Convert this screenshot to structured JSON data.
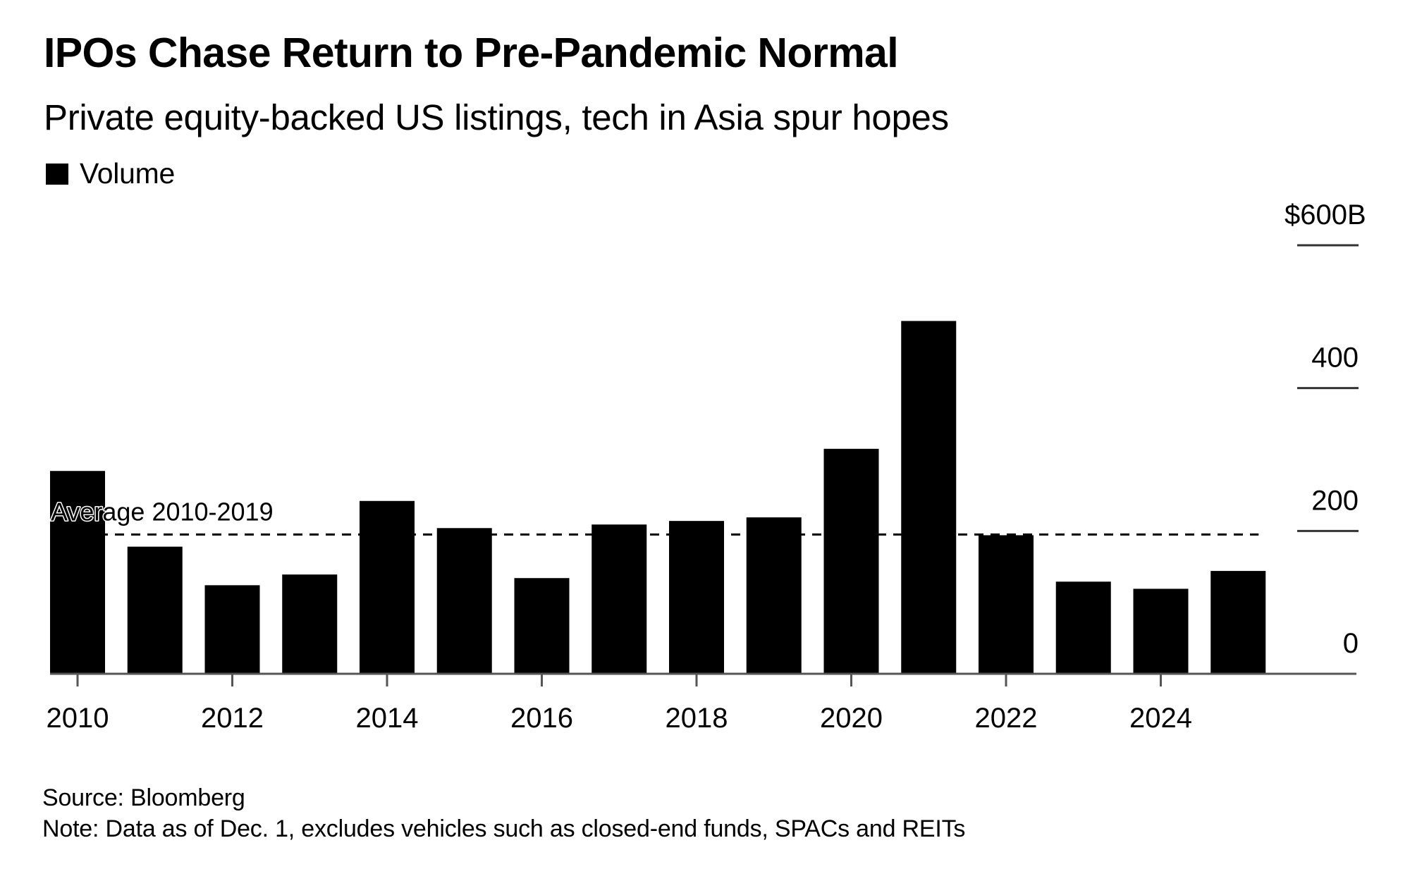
{
  "header": {
    "title": "IPOs Chase Return to Pre-Pandemic Normal",
    "subtitle": "Private equity-backed US listings, tech in Asia spur hopes"
  },
  "legend": {
    "items": [
      {
        "label": "Volume",
        "color": "#000000"
      }
    ]
  },
  "footer": {
    "source": "Source: Bloomberg",
    "note": "Note: Data as of Dec. 1, excludes vehicles such as closed-end funds, SPACs and REITs"
  },
  "chart_data": {
    "type": "bar",
    "title": "IPOs Chase Return to Pre-Pandemic Normal",
    "subtitle": "Private equity-backed US listings, tech in Asia spur hopes",
    "xlabel": "",
    "ylabel": "",
    "categories": [
      "2010",
      "2011",
      "2012",
      "2013",
      "2014",
      "2015",
      "2016",
      "2017",
      "2018",
      "2019",
      "2020",
      "2021",
      "2022",
      "2023",
      "2024",
      "2025"
    ],
    "series": [
      {
        "name": "Volume",
        "color": "#000000",
        "values": [
          284,
          178,
          124,
          139,
          242,
          204,
          134,
          209,
          214,
          219,
          315,
          494,
          194,
          129,
          119,
          144
        ]
      }
    ],
    "units": "$B",
    "ylim": [
      0,
      600
    ],
    "y_ticks": [
      {
        "value": 0,
        "label": "0"
      },
      {
        "value": 200,
        "label": "200"
      },
      {
        "value": 400,
        "label": "400"
      },
      {
        "value": 600,
        "label": "600",
        "prefix": "$",
        "suffix": "B"
      }
    ],
    "x_tick_labels": [
      "2010",
      "2012",
      "2014",
      "2016",
      "2018",
      "2020",
      "2022",
      "2024"
    ],
    "y_axis_position": "right",
    "grid": false,
    "legend_position": "top-left",
    "reference_line": {
      "label": "Average 2010-2019",
      "value": 195,
      "style": "dashed",
      "span": [
        "2010",
        "2025"
      ]
    }
  }
}
